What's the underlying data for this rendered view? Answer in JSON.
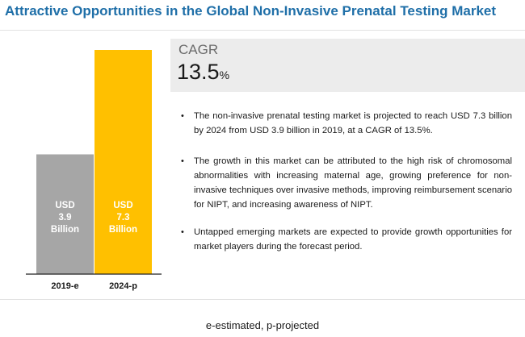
{
  "title": "Attractive Opportunities in the Global Non-Invasive Prenatal Testing Market",
  "cagr": {
    "label": "CAGR",
    "value": "13.5",
    "unit": "%"
  },
  "bullets": [
    "The non-invasive prenatal testing market is projected to reach USD 7.3 billion by 2024 from USD 3.9 billion in 2019, at a CAGR of 13.5%.",
    "The growth in this market can be attributed to the high risk of chromosomal abnormalities with increasing maternal age, growing preference for non-invasive techniques over invasive methods, improving reimbursement scenario for NIPT, and increasing awareness of NIPT.",
    "Untapped emerging markets are expected to provide growth opportunities for market players during the forecast period."
  ],
  "footnote": "e-estimated, p-projected",
  "colors": {
    "title": "#1f6fa8",
    "bar_2019": "#a6a6a6",
    "bar_2024": "#ffc000",
    "bar_text": "#ffffff",
    "cagr_band": "#ececec"
  },
  "chart_data": {
    "type": "bar",
    "categories": [
      "2019-e",
      "2024-p"
    ],
    "values": [
      3.9,
      7.3
    ],
    "bar_labels": [
      [
        "USD",
        "3.9",
        "Billion"
      ],
      [
        "USD",
        "7.3",
        "Billion"
      ]
    ],
    "title": "",
    "xlabel": "",
    "ylabel": "",
    "ylim": [
      0,
      7.3
    ],
    "grid": false
  }
}
